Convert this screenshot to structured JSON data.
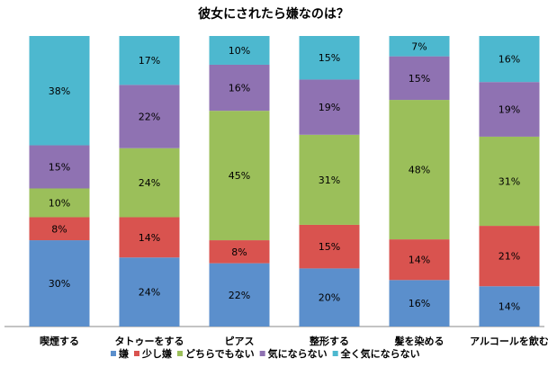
{
  "chart_data": {
    "type": "bar",
    "stacked": true,
    "percent_stacked": true,
    "title": "彼女にされたら嫌なのは？",
    "categories": [
      "喫煙する",
      "タトゥーをする",
      "ピアス",
      "整形する",
      "髪を染める",
      "アルコールを飲む"
    ],
    "series": [
      {
        "name": "嫌",
        "color": "#5b8fcc",
        "values": [
          30,
          24,
          22,
          20,
          16,
          14
        ]
      },
      {
        "name": "少し嫌",
        "color": "#d9534f",
        "values": [
          8,
          14,
          8,
          15,
          14,
          21
        ]
      },
      {
        "name": "どちらでもない",
        "color": "#9bbf5a",
        "values": [
          10,
          24,
          45,
          31,
          48,
          31
        ]
      },
      {
        "name": "気にならない",
        "color": "#8f72b2",
        "values": [
          15,
          22,
          16,
          19,
          15,
          19
        ]
      },
      {
        "name": "全く気にならない",
        "color": "#4db8cf",
        "values": [
          38,
          17,
          10,
          15,
          7,
          16
        ]
      }
    ],
    "value_suffix": "%",
    "legend_position": "bottom",
    "grid": false
  }
}
